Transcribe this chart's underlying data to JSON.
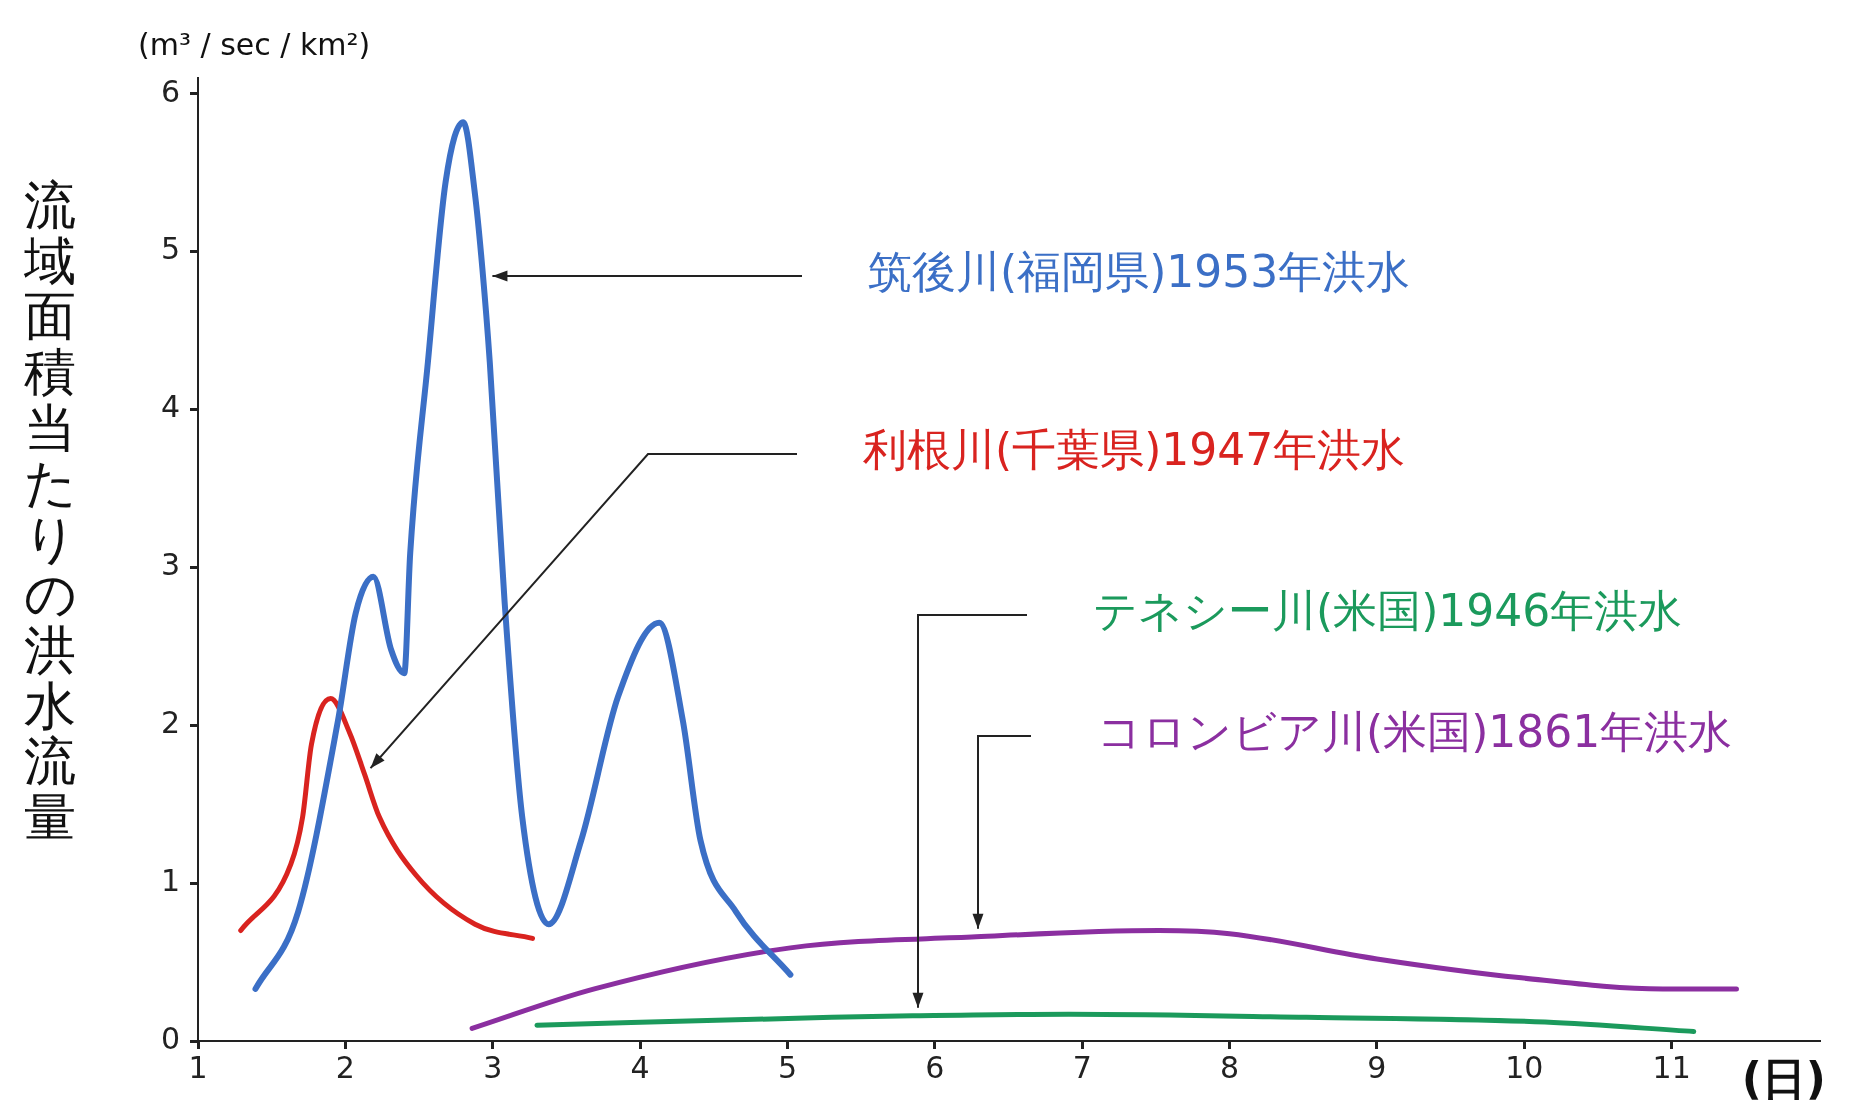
{
  "chart_data": {
    "type": "line",
    "ylabel": "流域面積当たりの洪水流量",
    "xlabel": "(日)",
    "annotations": [
      "(m³ / sec / km²)"
    ],
    "xlim": [
      1,
      12
    ],
    "xticks": [
      1,
      2,
      3,
      4,
      5,
      6,
      7,
      8,
      9,
      10,
      11
    ],
    "ylim": [
      0,
      6.1
    ],
    "yticks": [
      0,
      1,
      2,
      3,
      4,
      5,
      6
    ],
    "grid": false,
    "legend": false,
    "marker": "none",
    "line_style": "solid",
    "series": [
      {
        "name": "筑後川(福岡県)1953年洪水",
        "color": "#3b6fc6",
        "x": [
          1.39,
          1.68,
          1.95,
          2.07,
          2.19,
          2.31,
          2.4,
          2.44,
          2.56,
          2.68,
          2.8,
          2.88,
          2.93,
          2.98,
          3.08,
          3.2,
          3.38,
          3.6,
          3.85,
          4.13,
          4.29,
          4.41,
          4.65,
          5.02
        ],
        "values": [
          0.33,
          0.82,
          2.03,
          2.71,
          2.94,
          2.48,
          2.33,
          3.09,
          4.3,
          5.44,
          5.82,
          5.36,
          4.89,
          4.3,
          2.79,
          1.42,
          0.74,
          1.27,
          2.18,
          2.65,
          2.03,
          1.27,
          0.82,
          0.42
        ]
      },
      {
        "name": "利根川(千葉県)1947年洪水",
        "color": "#d9231f",
        "x": [
          1.29,
          1.63,
          1.71,
          1.77,
          1.9,
          2.03,
          2.13,
          2.23,
          2.48,
          2.88,
          3.27
        ],
        "values": [
          0.7,
          1.12,
          1.42,
          1.88,
          2.17,
          1.95,
          1.69,
          1.42,
          1.05,
          0.74,
          0.65
        ]
      },
      {
        "name": "テネシー川(米国)1946年洪水",
        "color": "#1b9a5c",
        "x": [
          3.3,
          5.3,
          5.85,
          6.91,
          8.52,
          10.14,
          11.15
        ],
        "values": [
          0.1,
          0.15,
          0.16,
          0.17,
          0.15,
          0.12,
          0.06
        ]
      },
      {
        "name": "コロンビア川(米国)1861年洪水",
        "color": "#8b2fa0",
        "x": [
          2.86,
          3.69,
          5.02,
          6.28,
          7.52,
          8.0,
          9.0,
          9.98,
          10.94,
          11.44
        ],
        "values": [
          0.08,
          0.33,
          0.59,
          0.66,
          0.7,
          0.68,
          0.52,
          0.4,
          0.33,
          0.33
        ]
      }
    ]
  }
}
